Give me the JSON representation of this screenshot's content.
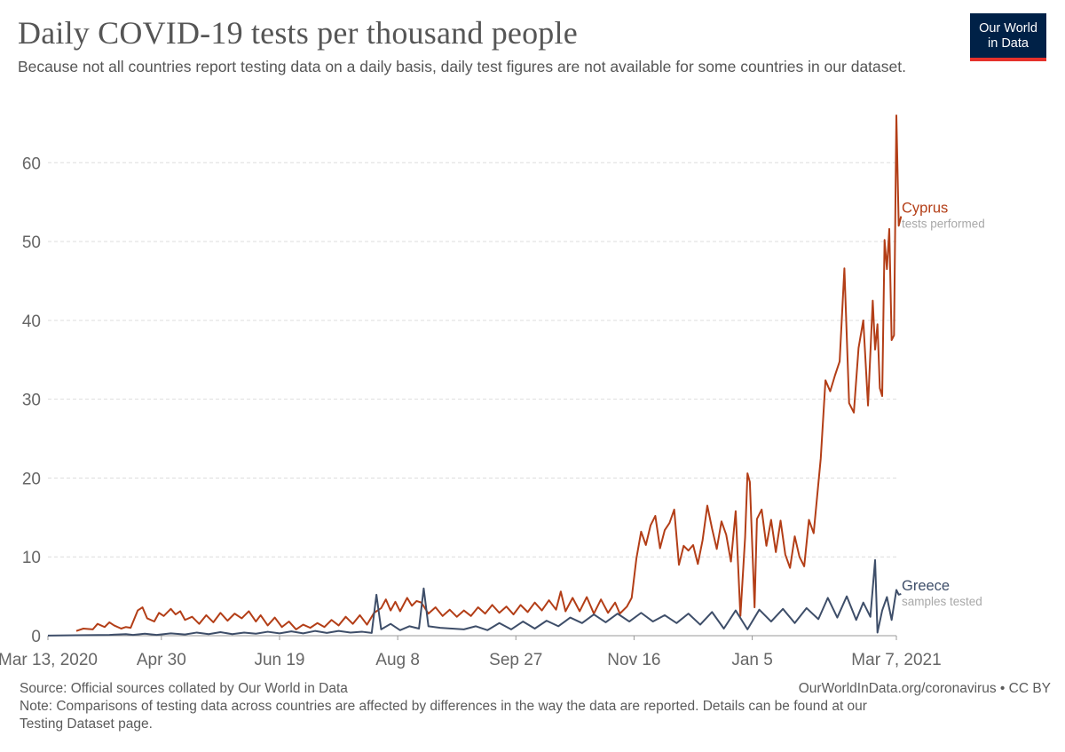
{
  "header": {
    "title": "Daily COVID-19 tests per thousand people",
    "subtitle": "Because not all countries report testing data on a daily basis, daily test figures are not available for some countries in our dataset."
  },
  "logo": {
    "line1": "Our World",
    "line2": "in Data",
    "bg_color": "#002147",
    "accent_color": "#e5312b"
  },
  "footer": {
    "source": "Source: Official sources collated by Our World in Data",
    "note": "Note: Comparisons of testing data across countries are affected by differences in the way the data are reported. Details can be found at our Testing Dataset page.",
    "link": "OurWorldInData.org/coronavirus • CC BY"
  },
  "chart_data": {
    "type": "line",
    "title": "Daily COVID-19 tests per thousand people",
    "xlabel": "",
    "ylabel": "",
    "x_range": [
      "2020-03-13",
      "2021-03-07"
    ],
    "ylim": [
      0,
      66
    ],
    "x_ticks": [
      {
        "date": "2020-03-13",
        "label": "Mar 13, 2020"
      },
      {
        "date": "2020-04-30",
        "label": "Apr 30"
      },
      {
        "date": "2020-06-19",
        "label": "Jun 19"
      },
      {
        "date": "2020-08-08",
        "label": "Aug 8"
      },
      {
        "date": "2020-09-27",
        "label": "Sep 27"
      },
      {
        "date": "2020-11-16",
        "label": "Nov 16"
      },
      {
        "date": "2021-01-05",
        "label": "Jan 5"
      },
      {
        "date": "2021-03-07",
        "label": "Mar 7, 2021"
      }
    ],
    "y_ticks": [
      0,
      10,
      20,
      30,
      40,
      50,
      60
    ],
    "grid": "horizontal dashed",
    "series": [
      {
        "name": "Cyprus",
        "sublabel": "tests performed",
        "color": "#b33e17",
        "points": [
          [
            "2020-03-25",
            0.6
          ],
          [
            "2020-03-28",
            0.9
          ],
          [
            "2020-04-01",
            0.8
          ],
          [
            "2020-04-03",
            1.5
          ],
          [
            "2020-04-06",
            1.1
          ],
          [
            "2020-04-08",
            1.7
          ],
          [
            "2020-04-10",
            1.3
          ],
          [
            "2020-04-13",
            0.9
          ],
          [
            "2020-04-15",
            1.1
          ],
          [
            "2020-04-17",
            1.0
          ],
          [
            "2020-04-20",
            3.2
          ],
          [
            "2020-04-22",
            3.6
          ],
          [
            "2020-04-24",
            2.2
          ],
          [
            "2020-04-27",
            1.8
          ],
          [
            "2020-04-29",
            2.9
          ],
          [
            "2020-05-01",
            2.5
          ],
          [
            "2020-05-04",
            3.4
          ],
          [
            "2020-05-06",
            2.7
          ],
          [
            "2020-05-08",
            3.1
          ],
          [
            "2020-05-10",
            2.0
          ],
          [
            "2020-05-13",
            2.4
          ],
          [
            "2020-05-16",
            1.5
          ],
          [
            "2020-05-19",
            2.6
          ],
          [
            "2020-05-22",
            1.7
          ],
          [
            "2020-05-25",
            2.9
          ],
          [
            "2020-05-28",
            1.9
          ],
          [
            "2020-05-31",
            2.8
          ],
          [
            "2020-06-03",
            2.2
          ],
          [
            "2020-06-06",
            3.1
          ],
          [
            "2020-06-09",
            1.8
          ],
          [
            "2020-06-11",
            2.6
          ],
          [
            "2020-06-14",
            1.3
          ],
          [
            "2020-06-17",
            2.3
          ],
          [
            "2020-06-20",
            1.1
          ],
          [
            "2020-06-23",
            1.8
          ],
          [
            "2020-06-26",
            0.8
          ],
          [
            "2020-06-29",
            1.4
          ],
          [
            "2020-07-02",
            1.0
          ],
          [
            "2020-07-05",
            1.6
          ],
          [
            "2020-07-08",
            1.1
          ],
          [
            "2020-07-11",
            2.0
          ],
          [
            "2020-07-14",
            1.3
          ],
          [
            "2020-07-17",
            2.4
          ],
          [
            "2020-07-20",
            1.5
          ],
          [
            "2020-07-23",
            2.6
          ],
          [
            "2020-07-26",
            1.4
          ],
          [
            "2020-07-29",
            2.9
          ],
          [
            "2020-08-01",
            3.5
          ],
          [
            "2020-08-03",
            4.6
          ],
          [
            "2020-08-05",
            3.2
          ],
          [
            "2020-08-07",
            4.3
          ],
          [
            "2020-08-09",
            3.1
          ],
          [
            "2020-08-12",
            4.8
          ],
          [
            "2020-08-14",
            3.8
          ],
          [
            "2020-08-16",
            4.4
          ],
          [
            "2020-08-18",
            4.2
          ],
          [
            "2020-08-21",
            2.8
          ],
          [
            "2020-08-24",
            3.6
          ],
          [
            "2020-08-27",
            2.5
          ],
          [
            "2020-08-30",
            3.3
          ],
          [
            "2020-09-02",
            2.4
          ],
          [
            "2020-09-05",
            3.2
          ],
          [
            "2020-09-08",
            2.5
          ],
          [
            "2020-09-11",
            3.6
          ],
          [
            "2020-09-14",
            2.8
          ],
          [
            "2020-09-17",
            3.9
          ],
          [
            "2020-09-20",
            2.9
          ],
          [
            "2020-09-23",
            3.7
          ],
          [
            "2020-09-26",
            2.7
          ],
          [
            "2020-09-29",
            3.9
          ],
          [
            "2020-10-02",
            3.0
          ],
          [
            "2020-10-05",
            4.2
          ],
          [
            "2020-10-08",
            3.2
          ],
          [
            "2020-10-11",
            4.5
          ],
          [
            "2020-10-14",
            3.3
          ],
          [
            "2020-10-16",
            5.6
          ],
          [
            "2020-10-18",
            3.1
          ],
          [
            "2020-10-21",
            4.8
          ],
          [
            "2020-10-24",
            3.1
          ],
          [
            "2020-10-27",
            4.9
          ],
          [
            "2020-10-30",
            2.8
          ],
          [
            "2020-11-02",
            4.6
          ],
          [
            "2020-11-05",
            2.9
          ],
          [
            "2020-11-08",
            4.2
          ],
          [
            "2020-11-10",
            2.8
          ],
          [
            "2020-11-13",
            3.7
          ],
          [
            "2020-11-15",
            4.8
          ],
          [
            "2020-11-17",
            9.8
          ],
          [
            "2020-11-19",
            13.2
          ],
          [
            "2020-11-21",
            11.5
          ],
          [
            "2020-11-23",
            14.0
          ],
          [
            "2020-11-25",
            15.2
          ],
          [
            "2020-11-27",
            11.1
          ],
          [
            "2020-11-29",
            13.4
          ],
          [
            "2020-12-01",
            14.3
          ],
          [
            "2020-12-03",
            16.0
          ],
          [
            "2020-12-05",
            9.0
          ],
          [
            "2020-12-07",
            11.4
          ],
          [
            "2020-12-09",
            10.8
          ],
          [
            "2020-12-11",
            11.5
          ],
          [
            "2020-12-13",
            9.1
          ],
          [
            "2020-12-15",
            12.1
          ],
          [
            "2020-12-17",
            16.5
          ],
          [
            "2020-12-19",
            13.6
          ],
          [
            "2020-12-21",
            11.0
          ],
          [
            "2020-12-23",
            14.5
          ],
          [
            "2020-12-25",
            12.8
          ],
          [
            "2020-12-27",
            9.4
          ],
          [
            "2020-12-29",
            15.8
          ],
          [
            "2020-12-31",
            2.5
          ],
          [
            "2021-01-02",
            12.5
          ],
          [
            "2021-01-03",
            20.6
          ],
          [
            "2021-01-04",
            19.5
          ],
          [
            "2021-01-06",
            3.6
          ],
          [
            "2021-01-07",
            14.8
          ],
          [
            "2021-01-09",
            16.0
          ],
          [
            "2021-01-11",
            11.4
          ],
          [
            "2021-01-13",
            14.7
          ],
          [
            "2021-01-15",
            10.6
          ],
          [
            "2021-01-17",
            14.6
          ],
          [
            "2021-01-19",
            10.3
          ],
          [
            "2021-01-21",
            8.6
          ],
          [
            "2021-01-23",
            12.6
          ],
          [
            "2021-01-25",
            10.0
          ],
          [
            "2021-01-27",
            8.8
          ],
          [
            "2021-01-29",
            14.7
          ],
          [
            "2021-01-31",
            13.0
          ],
          [
            "2021-02-03",
            22.5
          ],
          [
            "2021-02-05",
            32.4
          ],
          [
            "2021-02-07",
            31.0
          ],
          [
            "2021-02-09",
            33.0
          ],
          [
            "2021-02-11",
            34.8
          ],
          [
            "2021-02-13",
            46.6
          ],
          [
            "2021-02-15",
            29.5
          ],
          [
            "2021-02-17",
            28.3
          ],
          [
            "2021-02-19",
            36.5
          ],
          [
            "2021-02-21",
            40.0
          ],
          [
            "2021-02-23",
            29.2
          ],
          [
            "2021-02-25",
            42.5
          ],
          [
            "2021-02-26",
            36.3
          ],
          [
            "2021-02-27",
            39.5
          ],
          [
            "2021-02-28",
            31.4
          ],
          [
            "2021-03-01",
            30.4
          ],
          [
            "2021-03-02",
            50.2
          ],
          [
            "2021-03-03",
            46.5
          ],
          [
            "2021-03-04",
            51.6
          ],
          [
            "2021-03-05",
            37.5
          ],
          [
            "2021-03-06",
            38.1
          ],
          [
            "2021-03-07",
            66.0
          ],
          [
            "2021-03-08",
            52.0
          ],
          [
            "2021-03-09",
            53.2
          ]
        ]
      },
      {
        "name": "Greece",
        "sublabel": "samples tested",
        "color": "#3e4e69",
        "points": [
          [
            "2020-03-13",
            0.02
          ],
          [
            "2020-03-25",
            0.05
          ],
          [
            "2020-04-08",
            0.1
          ],
          [
            "2020-04-15",
            0.2
          ],
          [
            "2020-04-18",
            0.1
          ],
          [
            "2020-04-23",
            0.25
          ],
          [
            "2020-04-28",
            0.1
          ],
          [
            "2020-05-04",
            0.3
          ],
          [
            "2020-05-10",
            0.15
          ],
          [
            "2020-05-15",
            0.4
          ],
          [
            "2020-05-20",
            0.2
          ],
          [
            "2020-05-25",
            0.45
          ],
          [
            "2020-05-30",
            0.2
          ],
          [
            "2020-06-04",
            0.4
          ],
          [
            "2020-06-09",
            0.25
          ],
          [
            "2020-06-14",
            0.5
          ],
          [
            "2020-06-19",
            0.3
          ],
          [
            "2020-06-24",
            0.55
          ],
          [
            "2020-06-29",
            0.3
          ],
          [
            "2020-07-04",
            0.6
          ],
          [
            "2020-07-09",
            0.35
          ],
          [
            "2020-07-14",
            0.6
          ],
          [
            "2020-07-19",
            0.4
          ],
          [
            "2020-07-24",
            0.5
          ],
          [
            "2020-07-28",
            0.35
          ],
          [
            "2020-07-30",
            5.2
          ],
          [
            "2020-08-01",
            0.8
          ],
          [
            "2020-08-05",
            1.5
          ],
          [
            "2020-08-09",
            0.7
          ],
          [
            "2020-08-13",
            1.2
          ],
          [
            "2020-08-17",
            0.9
          ],
          [
            "2020-08-19",
            6.0
          ],
          [
            "2020-08-21",
            1.2
          ],
          [
            "2020-08-26",
            1.0
          ],
          [
            "2020-08-31",
            0.9
          ],
          [
            "2020-09-05",
            0.8
          ],
          [
            "2020-09-10",
            1.2
          ],
          [
            "2020-09-15",
            0.7
          ],
          [
            "2020-09-20",
            1.6
          ],
          [
            "2020-09-25",
            0.8
          ],
          [
            "2020-09-30",
            1.8
          ],
          [
            "2020-10-05",
            0.9
          ],
          [
            "2020-10-10",
            1.9
          ],
          [
            "2020-10-15",
            1.2
          ],
          [
            "2020-10-20",
            2.3
          ],
          [
            "2020-10-25",
            1.6
          ],
          [
            "2020-10-30",
            2.7
          ],
          [
            "2020-11-04",
            1.7
          ],
          [
            "2020-11-09",
            2.8
          ],
          [
            "2020-11-14",
            1.8
          ],
          [
            "2020-11-19",
            2.9
          ],
          [
            "2020-11-24",
            1.8
          ],
          [
            "2020-11-29",
            2.6
          ],
          [
            "2020-12-04",
            1.6
          ],
          [
            "2020-12-09",
            2.8
          ],
          [
            "2020-12-14",
            1.4
          ],
          [
            "2020-12-19",
            3.0
          ],
          [
            "2020-12-24",
            0.9
          ],
          [
            "2020-12-29",
            3.2
          ],
          [
            "2021-01-03",
            0.8
          ],
          [
            "2021-01-08",
            3.3
          ],
          [
            "2021-01-13",
            1.8
          ],
          [
            "2021-01-18",
            3.4
          ],
          [
            "2021-01-23",
            1.6
          ],
          [
            "2021-01-28",
            3.5
          ],
          [
            "2021-02-02",
            2.1
          ],
          [
            "2021-02-06",
            4.8
          ],
          [
            "2021-02-10",
            2.3
          ],
          [
            "2021-02-14",
            5.0
          ],
          [
            "2021-02-18",
            2.0
          ],
          [
            "2021-02-21",
            4.2
          ],
          [
            "2021-02-24",
            2.4
          ],
          [
            "2021-02-26",
            9.6
          ],
          [
            "2021-02-27",
            0.4
          ],
          [
            "2021-03-01",
            3.2
          ],
          [
            "2021-03-03",
            4.9
          ],
          [
            "2021-03-05",
            2.0
          ],
          [
            "2021-03-07",
            5.8
          ],
          [
            "2021-03-08",
            5.2
          ],
          [
            "2021-03-09",
            5.3
          ]
        ]
      }
    ]
  }
}
